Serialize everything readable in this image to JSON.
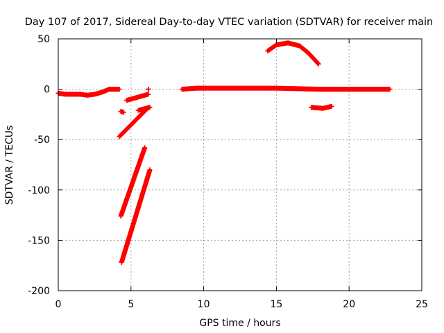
{
  "chart_data": {
    "type": "scatter",
    "title": "Day 107 of 2017, Sidereal Day-to-day VTEC variation (SDTVAR) for receiver main",
    "xlabel": "GPS time / hours",
    "ylabel": "SDTVAR / TECUs",
    "xlim": [
      0,
      25
    ],
    "ylim": [
      -200,
      50
    ],
    "xticks": [
      0,
      5,
      10,
      15,
      20,
      25
    ],
    "yticks": [
      -200,
      -150,
      -100,
      -50,
      0,
      50
    ],
    "grid": true,
    "marker": "plus",
    "color": "#ff0000",
    "segments": [
      {
        "points": [
          [
            0.0,
            -4
          ],
          [
            0.5,
            -5
          ],
          [
            1.0,
            -5
          ],
          [
            1.5,
            -5
          ],
          [
            2.0,
            -6
          ],
          [
            2.5,
            -5
          ],
          [
            3.0,
            -3
          ],
          [
            3.5,
            0
          ],
          [
            4.0,
            0
          ],
          [
            4.2,
            0
          ]
        ]
      },
      {
        "points": [
          [
            4.2,
            -47
          ],
          [
            6.2,
            -18
          ]
        ]
      },
      {
        "points": [
          [
            4.3,
            -22
          ],
          [
            4.5,
            -23
          ]
        ]
      },
      {
        "points": [
          [
            4.3,
            -126
          ],
          [
            5.95,
            -58
          ]
        ]
      },
      {
        "points": [
          [
            4.35,
            -172
          ],
          [
            6.3,
            -80
          ]
        ]
      },
      {
        "points": [
          [
            4.7,
            -11
          ],
          [
            6.2,
            -5
          ]
        ]
      },
      {
        "points": [
          [
            5.5,
            -21
          ],
          [
            6.3,
            -18
          ]
        ]
      },
      {
        "points": [
          [
            6.2,
            0
          ],
          [
            6.2,
            0
          ]
        ]
      },
      {
        "points": [
          [
            8.5,
            0
          ],
          [
            9.5,
            1
          ],
          [
            12,
            1
          ],
          [
            15,
            1
          ],
          [
            18,
            0
          ],
          [
            20,
            0
          ],
          [
            22.8,
            0
          ]
        ]
      },
      {
        "points": [
          [
            14.4,
            38
          ],
          [
            15.0,
            44
          ],
          [
            15.8,
            46
          ],
          [
            16.6,
            43
          ],
          [
            17.2,
            36
          ],
          [
            17.9,
            25
          ]
        ]
      },
      {
        "points": [
          [
            17.4,
            -18
          ],
          [
            18.2,
            -19
          ],
          [
            18.8,
            -17
          ]
        ]
      }
    ]
  }
}
